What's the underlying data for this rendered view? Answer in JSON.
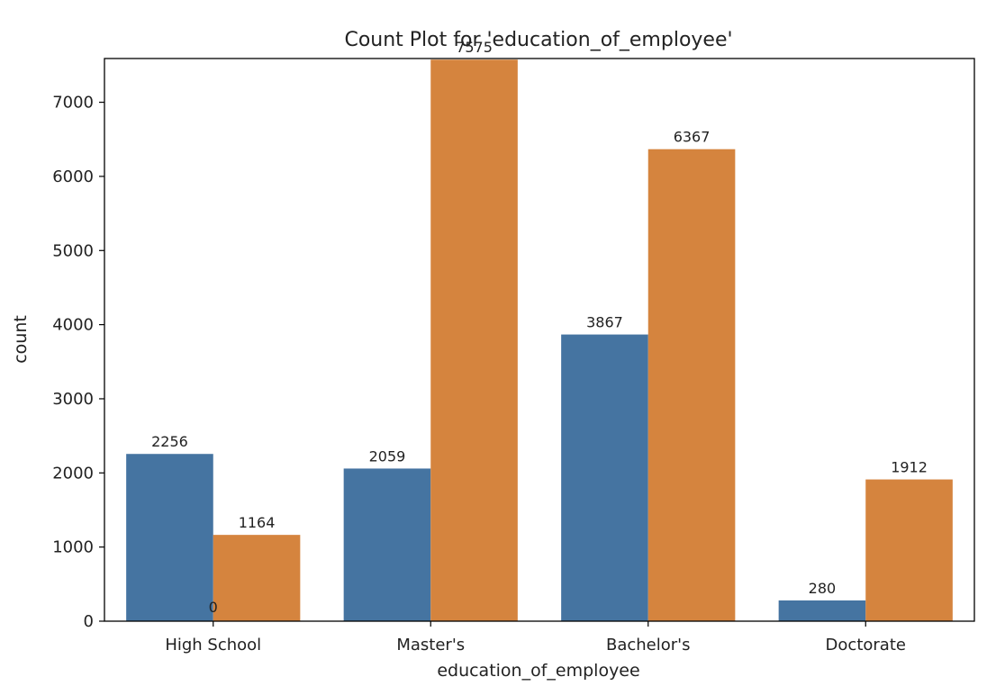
{
  "chart_data": {
    "type": "bar",
    "title": "Count Plot for 'education_of_employee'",
    "xlabel": "education_of_employee",
    "ylabel": "count",
    "categories": [
      "High School",
      "Master's",
      "Bachelor's",
      "Doctorate"
    ],
    "series": [
      {
        "values": [
          2256,
          2059,
          3867,
          280
        ],
        "color": "#4574a1"
      },
      {
        "values": [
          1164,
          7575,
          6367,
          1912
        ],
        "color": "#d5843e"
      }
    ],
    "extra_annotations": [
      "0"
    ],
    "ylim": [
      0,
      7590
    ],
    "yticks": [
      0,
      1000,
      2000,
      3000,
      4000,
      5000,
      6000,
      7000
    ],
    "grid": false,
    "legend": "none"
  }
}
